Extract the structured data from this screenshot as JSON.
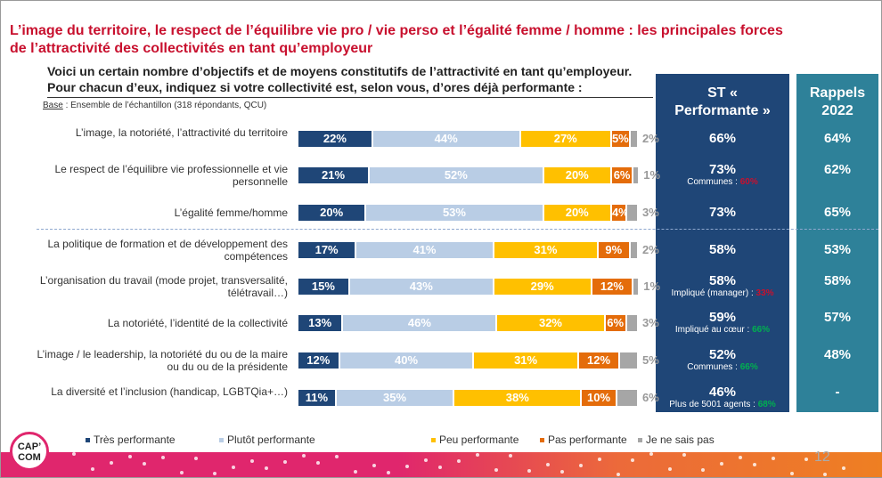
{
  "title": "L’image du territoire, le respect de l’équilibre vie pro / vie perso et l’égalité femme / homme : les principales forces de l’attractivité des collectivités en tant qu’employeur",
  "question": "Voici un certain nombre d’objectifs et de moyens constitutifs de l’attractivité en tant qu’employeur. Pour chacun d’eux, indiquez si votre collectivité est, selon vous, d’ores déjà performante :",
  "base_label": "Base",
  "base_text": " : Ensemble de l’échantillon (318 répondants, QCU)",
  "st_header": "ST « Performante »",
  "rappels_header": "Rappels 2022",
  "page_number": "12",
  "logo_text": "CAP’ COM",
  "colors": {
    "tres": "#1f4677",
    "plutot": "#b9cde5",
    "peu": "#ffc000",
    "pas": "#e46c0a",
    "jnsp": "#a6a6a6",
    "red": "#c8102e",
    "green": "#00b050"
  },
  "chart_data": {
    "type": "bar",
    "orientation": "horizontal-stacked",
    "categories": [
      "L’image, la notoriété,  l’attractivité du territoire",
      "Le respect de l’équilibre vie professionnelle et vie personnelle",
      "L’égalité femme/homme",
      "La politique de formation et de développement des compétences",
      "L’organisation du travail (mode projet, transversalité, télétravail…)",
      "La notoriété, l’identité de la collectivité",
      "L’image / le leadership, la notoriété du ou de la maire ou du ou de la présidente",
      "La diversité et l’inclusion (handicap, LGBTQia+…)"
    ],
    "series": [
      {
        "name": "Très performante",
        "values": [
          22,
          21,
          20,
          17,
          15,
          13,
          12,
          11
        ]
      },
      {
        "name": "Plutôt performante",
        "values": [
          44,
          52,
          53,
          41,
          43,
          46,
          40,
          35
        ]
      },
      {
        "name": "Peu performante",
        "values": [
          27,
          20,
          20,
          31,
          29,
          32,
          31,
          38
        ]
      },
      {
        "name": "Pas performante",
        "values": [
          5,
          6,
          4,
          9,
          12,
          6,
          12,
          10
        ]
      },
      {
        "name": "Je ne sais pas",
        "values": [
          2,
          1,
          3,
          2,
          1,
          3,
          5,
          6
        ]
      }
    ],
    "st_performante": [
      "66%",
      "73%",
      "73%",
      "58%",
      "58%",
      "59%",
      "52%",
      "46%"
    ],
    "st_notes": [
      null,
      {
        "label": "Communes : ",
        "value": "60%",
        "color": "red"
      },
      null,
      null,
      {
        "label": "Impliqué (manager) : ",
        "value": "33%",
        "color": "red"
      },
      {
        "label": "Impliqué au cœur : ",
        "value": "66%",
        "color": "green"
      },
      {
        "label": "Communes : ",
        "value": "66%",
        "color": "green"
      },
      {
        "label": "Plus de 5001 agents : ",
        "value": "68%",
        "color": "green"
      }
    ],
    "rappels_2022": [
      "64%",
      "62%",
      "65%",
      "53%",
      "58%",
      "57%",
      "48%",
      "-"
    ],
    "legend_position": "bottom"
  }
}
